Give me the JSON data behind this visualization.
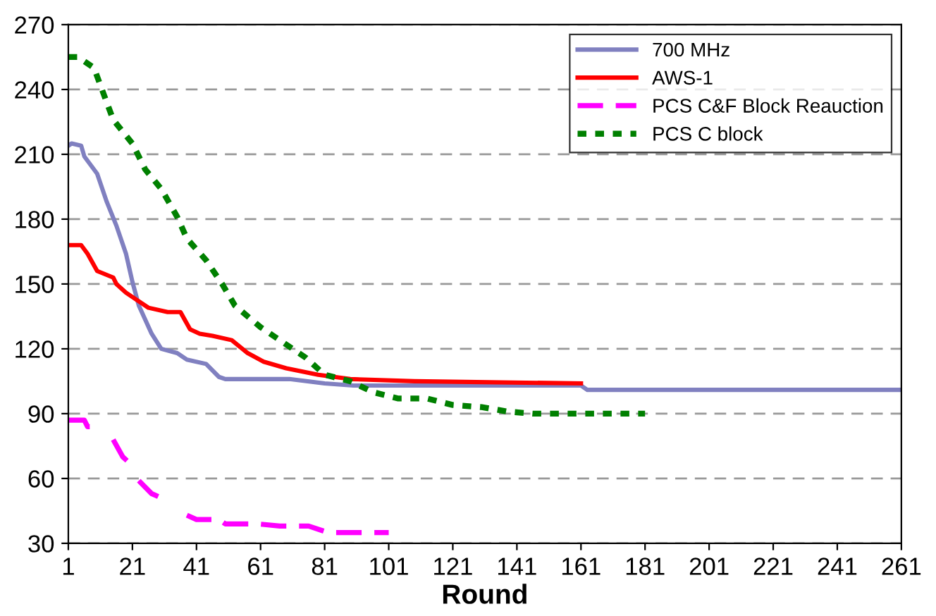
{
  "chart_data": {
    "type": "line",
    "xlabel": "Round",
    "xlim": [
      1,
      261
    ],
    "xticks": [
      1,
      21,
      41,
      61,
      81,
      101,
      121,
      141,
      161,
      181,
      201,
      221,
      241,
      261
    ],
    "ylim": [
      30,
      270
    ],
    "yticks": [
      30,
      60,
      90,
      120,
      150,
      180,
      210,
      240,
      270
    ],
    "grid": "y",
    "legend": "top right",
    "series": [
      {
        "name": "700 MHz",
        "color": "#8080c0",
        "line_style": "solid",
        "x": [
          1,
          2,
          5,
          6,
          10,
          13,
          16,
          19,
          21,
          23,
          27,
          30,
          35,
          38,
          44,
          48,
          50,
          70,
          81,
          90,
          161,
          163,
          261
        ],
        "values": [
          214,
          215,
          214,
          209,
          201,
          188,
          177,
          164,
          151,
          140,
          127,
          120,
          118,
          115,
          113,
          107,
          106,
          106,
          104,
          103,
          103,
          101,
          101
        ]
      },
      {
        "name": "AWS-1",
        "color": "#ff0000",
        "line_style": "solid",
        "x": [
          1,
          5,
          7,
          10,
          15,
          16,
          19,
          23,
          26,
          32,
          36,
          39,
          42,
          46,
          52,
          57,
          62,
          69,
          79,
          89,
          109,
          161
        ],
        "values": [
          168,
          168,
          164,
          156,
          153,
          150,
          146,
          142,
          139,
          137,
          137,
          129,
          127,
          126,
          124,
          118,
          114,
          111,
          108,
          106,
          105,
          104
        ]
      },
      {
        "name": "PCS C&F Block Reauction",
        "color": "#ff00ff",
        "line_style": "dashed",
        "x": [
          1,
          6,
          7,
          9,
          null,
          15,
          18,
          21,
          null,
          23,
          27,
          30,
          32,
          null,
          38,
          41,
          48,
          50,
          60,
          67,
          76,
          82,
          101
        ],
        "values": [
          87,
          87,
          84,
          84,
          null,
          78,
          70,
          66,
          null,
          59,
          53,
          51,
          48,
          null,
          43,
          41,
          41,
          39,
          39,
          38,
          38,
          35,
          35
        ]
      },
      {
        "name": "PCS C block",
        "color": "#008000",
        "line_style": "dotted",
        "x": [
          1,
          4,
          9,
          12,
          15,
          21,
          25,
          30,
          35,
          38,
          44,
          49,
          53,
          61,
          67,
          75,
          81,
          89,
          96,
          104,
          113,
          121,
          130,
          138,
          146,
          181
        ],
        "values": [
          255,
          255,
          250,
          238,
          226,
          215,
          203,
          194,
          181,
          171,
          161,
          150,
          140,
          130,
          124,
          116,
          108,
          105,
          100,
          97,
          97,
          94,
          93,
          91,
          90,
          90
        ]
      }
    ]
  }
}
